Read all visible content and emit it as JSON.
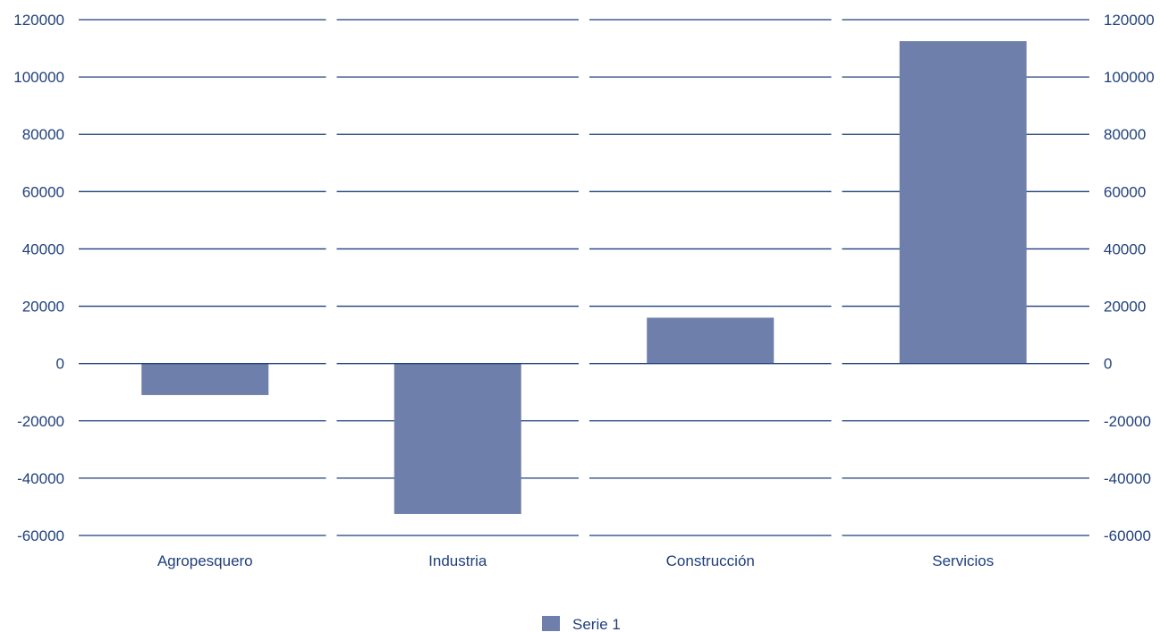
{
  "chart_data": {
    "type": "bar",
    "categories": [
      "Agropesquero",
      "Industria",
      "Construcción",
      "Servicios"
    ],
    "series": [
      {
        "name": "Serie 1",
        "values": [
          -11000,
          -52500,
          16000,
          112500
        ]
      }
    ],
    "ylim": [
      -60000,
      120000
    ],
    "yticks": [
      "120000",
      "100000",
      "80000",
      "60000",
      "40000",
      "20000",
      "0",
      "-20000",
      "-40000",
      "-60000"
    ],
    "ytick_values": [
      120000,
      100000,
      80000,
      60000,
      40000,
      20000,
      0,
      -20000,
      -40000,
      -60000
    ],
    "grid": true,
    "legend_position": "bottom-center",
    "colors": {
      "bar": "#6f7fab",
      "grid": "#1f3f7a",
      "text": "#1f3f7a"
    }
  }
}
